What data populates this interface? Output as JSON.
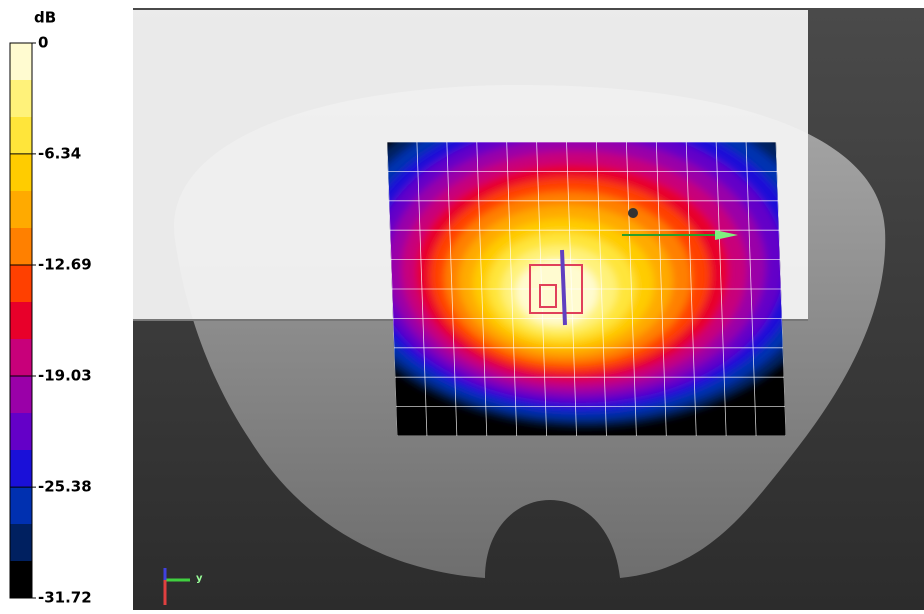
{
  "colorbar": {
    "unit": "dB",
    "ticks": [
      0,
      -6.34,
      -12.69,
      -19.03,
      -25.38,
      -31.72
    ],
    "colors": [
      "#fffbd0",
      "#fff27a",
      "#ffe53a",
      "#ffcc00",
      "#ffaa00",
      "#ff8000",
      "#ff4000",
      "#e8002a",
      "#c8007a",
      "#9a00a8",
      "#6400c8",
      "#1a10d8",
      "#0030b0",
      "#002060",
      "#000000"
    ]
  },
  "axes_triad": {
    "label": "y"
  }
}
